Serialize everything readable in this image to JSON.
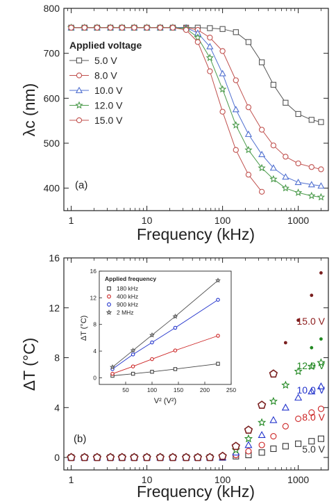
{
  "figure_labels": {
    "a": "(a)",
    "b": "(b)"
  },
  "chart_data": [
    {
      "type": "line",
      "panel": "(a)",
      "xlabel": "Frequency (kHz)",
      "ylabel": "λc (nm)",
      "xscale": "log",
      "xlim": [
        0.8,
        2500
      ],
      "ylim": [
        350,
        800
      ],
      "xticks": [
        1,
        10,
        100,
        1000
      ],
      "xtick_labels": [
        "1",
        "10",
        "100",
        "1000"
      ],
      "yticks": [
        400,
        500,
        600,
        700,
        800
      ],
      "ytick_labels": [
        "400",
        "500",
        "600",
        "700",
        "800"
      ],
      "legend_title": "Applied voltage",
      "legend_position": "top-left",
      "x": [
        1,
        1.5,
        2.2,
        3.3,
        4.7,
        6.8,
        10,
        15,
        22,
        33,
        47,
        68,
        100,
        150,
        220,
        330,
        470,
        680,
        1000,
        1500,
        2000
      ],
      "series": [
        {
          "name": "5.0 V",
          "marker": "square",
          "color": "#555555",
          "values": [
            757,
            757,
            757,
            757,
            757,
            757,
            757,
            757,
            757,
            757,
            757,
            756,
            754,
            747,
            725,
            680,
            630,
            590,
            565,
            552,
            547
          ]
        },
        {
          "name": "8.0 V",
          "marker": "circle",
          "color": "#c0504d",
          "values": [
            757,
            757,
            757,
            757,
            757,
            757,
            757,
            757,
            757,
            757,
            752,
            735,
            705,
            640,
            580,
            530,
            495,
            470,
            455,
            447,
            442
          ]
        },
        {
          "name": "10.0 V",
          "marker": "triangle",
          "color": "#4f6fd0",
          "values": [
            757,
            757,
            757,
            757,
            757,
            757,
            757,
            757,
            757,
            757,
            745,
            715,
            655,
            575,
            520,
            475,
            445,
            425,
            413,
            408,
            405
          ]
        },
        {
          "name": "12.0 V",
          "marker": "star",
          "color": "#4a9a4a",
          "values": [
            757,
            757,
            757,
            757,
            757,
            757,
            757,
            757,
            757,
            755,
            735,
            690,
            620,
            540,
            485,
            445,
            420,
            400,
            390,
            383,
            380
          ]
        },
        {
          "name": "15.0 V",
          "marker": "circle",
          "color": "#c0504d",
          "values": [
            757,
            757,
            757,
            757,
            757,
            757,
            757,
            757,
            757,
            752,
            725,
            660,
            570,
            485,
            430,
            392,
            null,
            null,
            null,
            null,
            null
          ]
        }
      ]
    },
    {
      "type": "scatter",
      "panel": "(b)",
      "xlabel": "Frequency (kHz)",
      "ylabel": "ΔT (°C)",
      "xscale": "log",
      "xlim": [
        0.8,
        2500
      ],
      "ylim": [
        -1,
        16
      ],
      "xticks": [
        1,
        10,
        100,
        1000
      ],
      "xtick_labels": [
        "1",
        "10",
        "100",
        "1000"
      ],
      "yticks": [
        0,
        4,
        8,
        12,
        16
      ],
      "ytick_labels": [
        "0",
        "4",
        "8",
        "12",
        "16"
      ],
      "x": [
        1,
        1.5,
        2.2,
        3.3,
        4.7,
        6.8,
        10,
        15,
        22,
        33,
        47,
        68,
        100,
        150,
        220,
        330,
        470,
        680,
        1000,
        1500,
        2000
      ],
      "series": [
        {
          "name": "5.0 V",
          "marker": "square",
          "color": "#333333",
          "values": [
            0,
            0,
            0,
            0,
            0,
            0,
            0,
            0,
            0,
            0,
            0,
            0,
            0,
            0.1,
            0.2,
            0.4,
            0.7,
            0.9,
            1.1,
            1.3,
            1.5
          ]
        },
        {
          "name": "8.0 V",
          "marker": "circle",
          "color": "#cc2222",
          "values": [
            0,
            0,
            0,
            0,
            0,
            0,
            0,
            0,
            0,
            0,
            0,
            0,
            0,
            0.2,
            0.5,
            1.0,
            1.7,
            2.5,
            3.1,
            3.6,
            3.9
          ]
        },
        {
          "name": "10.0 V",
          "marker": "triangle",
          "color": "#2233cc",
          "values": [
            0,
            0,
            0,
            0,
            0,
            0,
            0,
            0,
            0,
            0,
            0,
            0,
            0,
            0.4,
            1.0,
            1.8,
            3.0,
            4.0,
            4.8,
            5.3,
            5.7
          ]
        },
        {
          "name": "12.0 V",
          "marker": "star",
          "color": "#228822",
          "values": [
            0,
            0,
            0,
            0,
            0,
            0,
            0,
            0,
            0,
            0,
            0,
            0,
            0.1,
            0.6,
            1.5,
            2.8,
            4.5,
            5.8,
            6.9,
            7.3,
            7.6
          ]
        },
        {
          "name": "15.0 V",
          "marker": "pentagon",
          "color": "#7a1f1f",
          "values": [
            0,
            0,
            0,
            0,
            0,
            0,
            0,
            0,
            0,
            0,
            0,
            0,
            0.1,
            0.9,
            2.2,
            4.2,
            6.7,
            null,
            null,
            null,
            null
          ]
        },
        {
          "name": "15.0 V",
          "marker": "dot",
          "color": "#7a1f1f",
          "x": [
            680,
            1000,
            1500,
            2000
          ],
          "values": [
            9.2,
            11.0,
            13.0,
            14.8
          ]
        },
        {
          "name": "12.0 V",
          "marker": "dot",
          "color": "#228822",
          "x": [
            1500,
            2000
          ],
          "values": [
            8.8,
            9.5
          ]
        }
      ],
      "value_labels": [
        {
          "text": "15.0 V",
          "color": "#8b1a1a"
        },
        {
          "text": "12.0 V",
          "color": "#228822"
        },
        {
          "text": "10.0 V",
          "color": "#2233cc"
        },
        {
          "text": "8.0 V",
          "color": "#cc2222"
        },
        {
          "text": "5.0 V",
          "color": "#333333"
        }
      ],
      "inset": {
        "type": "line",
        "xlabel": "V² (V²)",
        "ylabel": "ΔT (°C)",
        "xlim": [
          0,
          250
        ],
        "ylim": [
          -1,
          16
        ],
        "xticks": [
          50,
          100,
          150,
          200,
          250
        ],
        "xtick_labels": [
          "50",
          "100",
          "150",
          "200",
          "250"
        ],
        "yticks": [
          0,
          4,
          8,
          12,
          16
        ],
        "ytick_labels": [
          "0",
          "4",
          "8",
          "12",
          "16"
        ],
        "legend_title": "Applied frequency",
        "legend_position": "top-left",
        "x": [
          25,
          64,
          100,
          144,
          225
        ],
        "series": [
          {
            "name": "180 kHz",
            "marker": "square",
            "color": "#444444",
            "values": [
              0.3,
              0.6,
              0.9,
              1.3,
              2.1
            ]
          },
          {
            "name": "400 kHz",
            "marker": "circle",
            "color": "#cc2222",
            "values": [
              0.6,
              1.7,
              2.8,
              4.1,
              6.3
            ]
          },
          {
            "name": "900 kHz",
            "marker": "circle",
            "color": "#2233cc",
            "values": [
              1.3,
              3.5,
              5.3,
              7.5,
              11.7
            ]
          },
          {
            "name": "2 MHz",
            "marker": "star",
            "color": "#555555",
            "values": [
              1.6,
              4.1,
              6.4,
              9.2,
              14.6
            ]
          }
        ]
      }
    }
  ]
}
